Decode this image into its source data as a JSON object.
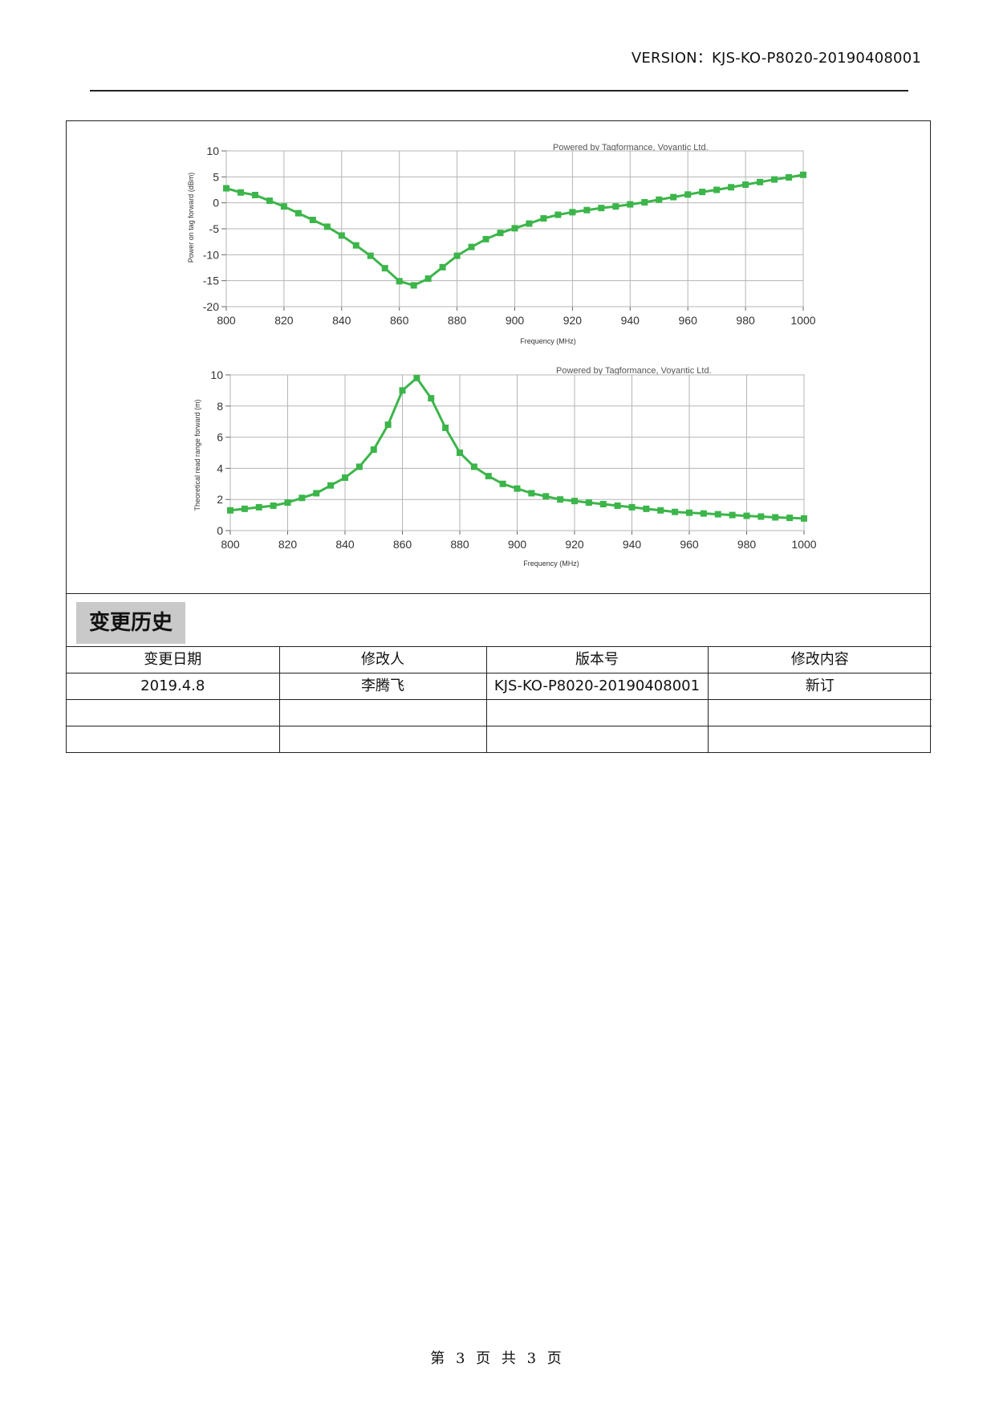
{
  "header": {
    "version_text": "VERSION：KJS-KO-P8020-20190408001"
  },
  "charts": [
    {
      "powered_text": "Powered by Tagformance, Voyantic Ltd.",
      "xlabel": "Frequency (MHz)",
      "ylabel": "Power on tag forward (dBm)"
    },
    {
      "powered_text": "Powered by Tagformance, Voyantic Ltd.",
      "xlabel": "Frequency (MHz)",
      "ylabel": "Theoretical read range forward (m)"
    }
  ],
  "chart_data": [
    {
      "type": "line",
      "title": "",
      "xlabel": "Frequency (MHz)",
      "ylabel": "Power on tag forward (dBm)",
      "xlim": [
        800,
        1000
      ],
      "ylim": [
        -20,
        10
      ],
      "x_ticks": [
        800,
        820,
        840,
        860,
        880,
        900,
        920,
        940,
        960,
        980,
        1000
      ],
      "y_ticks": [
        10,
        5,
        0,
        -5,
        -10,
        -15,
        -20
      ],
      "grid": true,
      "color": "#3cb54a",
      "x": [
        800,
        805,
        810,
        815,
        820,
        825,
        830,
        835,
        840,
        845,
        850,
        855,
        860,
        865,
        870,
        875,
        880,
        885,
        890,
        895,
        900,
        905,
        910,
        915,
        920,
        925,
        930,
        935,
        940,
        945,
        950,
        955,
        960,
        965,
        970,
        975,
        980,
        985,
        990,
        995,
        1000
      ],
      "values": [
        2.8,
        2.0,
        1.5,
        0.4,
        -0.7,
        -2.0,
        -3.3,
        -4.6,
        -6.3,
        -8.2,
        -10.2,
        -12.6,
        -15.1,
        -15.9,
        -14.6,
        -12.4,
        -10.2,
        -8.5,
        -7.0,
        -5.8,
        -4.9,
        -4.0,
        -3.0,
        -2.3,
        -1.8,
        -1.4,
        -1.0,
        -0.7,
        -0.3,
        0.1,
        0.6,
        1.1,
        1.6,
        2.1,
        2.5,
        3.0,
        3.5,
        4.0,
        4.5,
        4.9,
        5.4
      ]
    },
    {
      "type": "line",
      "title": "",
      "xlabel": "Frequency (MHz)",
      "ylabel": "Theoretical read range forward (m)",
      "xlim": [
        800,
        1000
      ],
      "ylim": [
        0,
        10
      ],
      "x_ticks": [
        800,
        820,
        840,
        860,
        880,
        900,
        920,
        940,
        960,
        980,
        1000
      ],
      "y_ticks": [
        10,
        8,
        6,
        4,
        2,
        0
      ],
      "grid": true,
      "color": "#3cb54a",
      "x": [
        800,
        805,
        810,
        815,
        820,
        825,
        830,
        835,
        840,
        845,
        850,
        855,
        860,
        865,
        870,
        875,
        880,
        885,
        890,
        895,
        900,
        905,
        910,
        915,
        920,
        925,
        930,
        935,
        940,
        945,
        950,
        955,
        960,
        965,
        970,
        975,
        980,
        985,
        990,
        995,
        1000
      ],
      "values": [
        1.3,
        1.4,
        1.5,
        1.6,
        1.8,
        2.1,
        2.4,
        2.9,
        3.4,
        4.1,
        5.2,
        6.8,
        9.0,
        9.8,
        8.5,
        6.6,
        5.0,
        4.1,
        3.5,
        3.0,
        2.7,
        2.4,
        2.2,
        2.0,
        1.9,
        1.8,
        1.7,
        1.6,
        1.5,
        1.4,
        1.3,
        1.2,
        1.15,
        1.1,
        1.05,
        1.0,
        0.95,
        0.9,
        0.85,
        0.82,
        0.78
      ]
    }
  ],
  "history": {
    "title": "变更历史",
    "columns": [
      "变更日期",
      "修改人",
      "版本号",
      "修改内容"
    ],
    "rows": [
      [
        "2019.4.8",
        "李腾飞",
        "KJS-KO-P8020-20190408001",
        "新订"
      ],
      [
        "",
        "",
        "",
        ""
      ],
      [
        "",
        "",
        "",
        ""
      ]
    ]
  },
  "footer": {
    "page_text": "第 3 页 共 3 页"
  }
}
